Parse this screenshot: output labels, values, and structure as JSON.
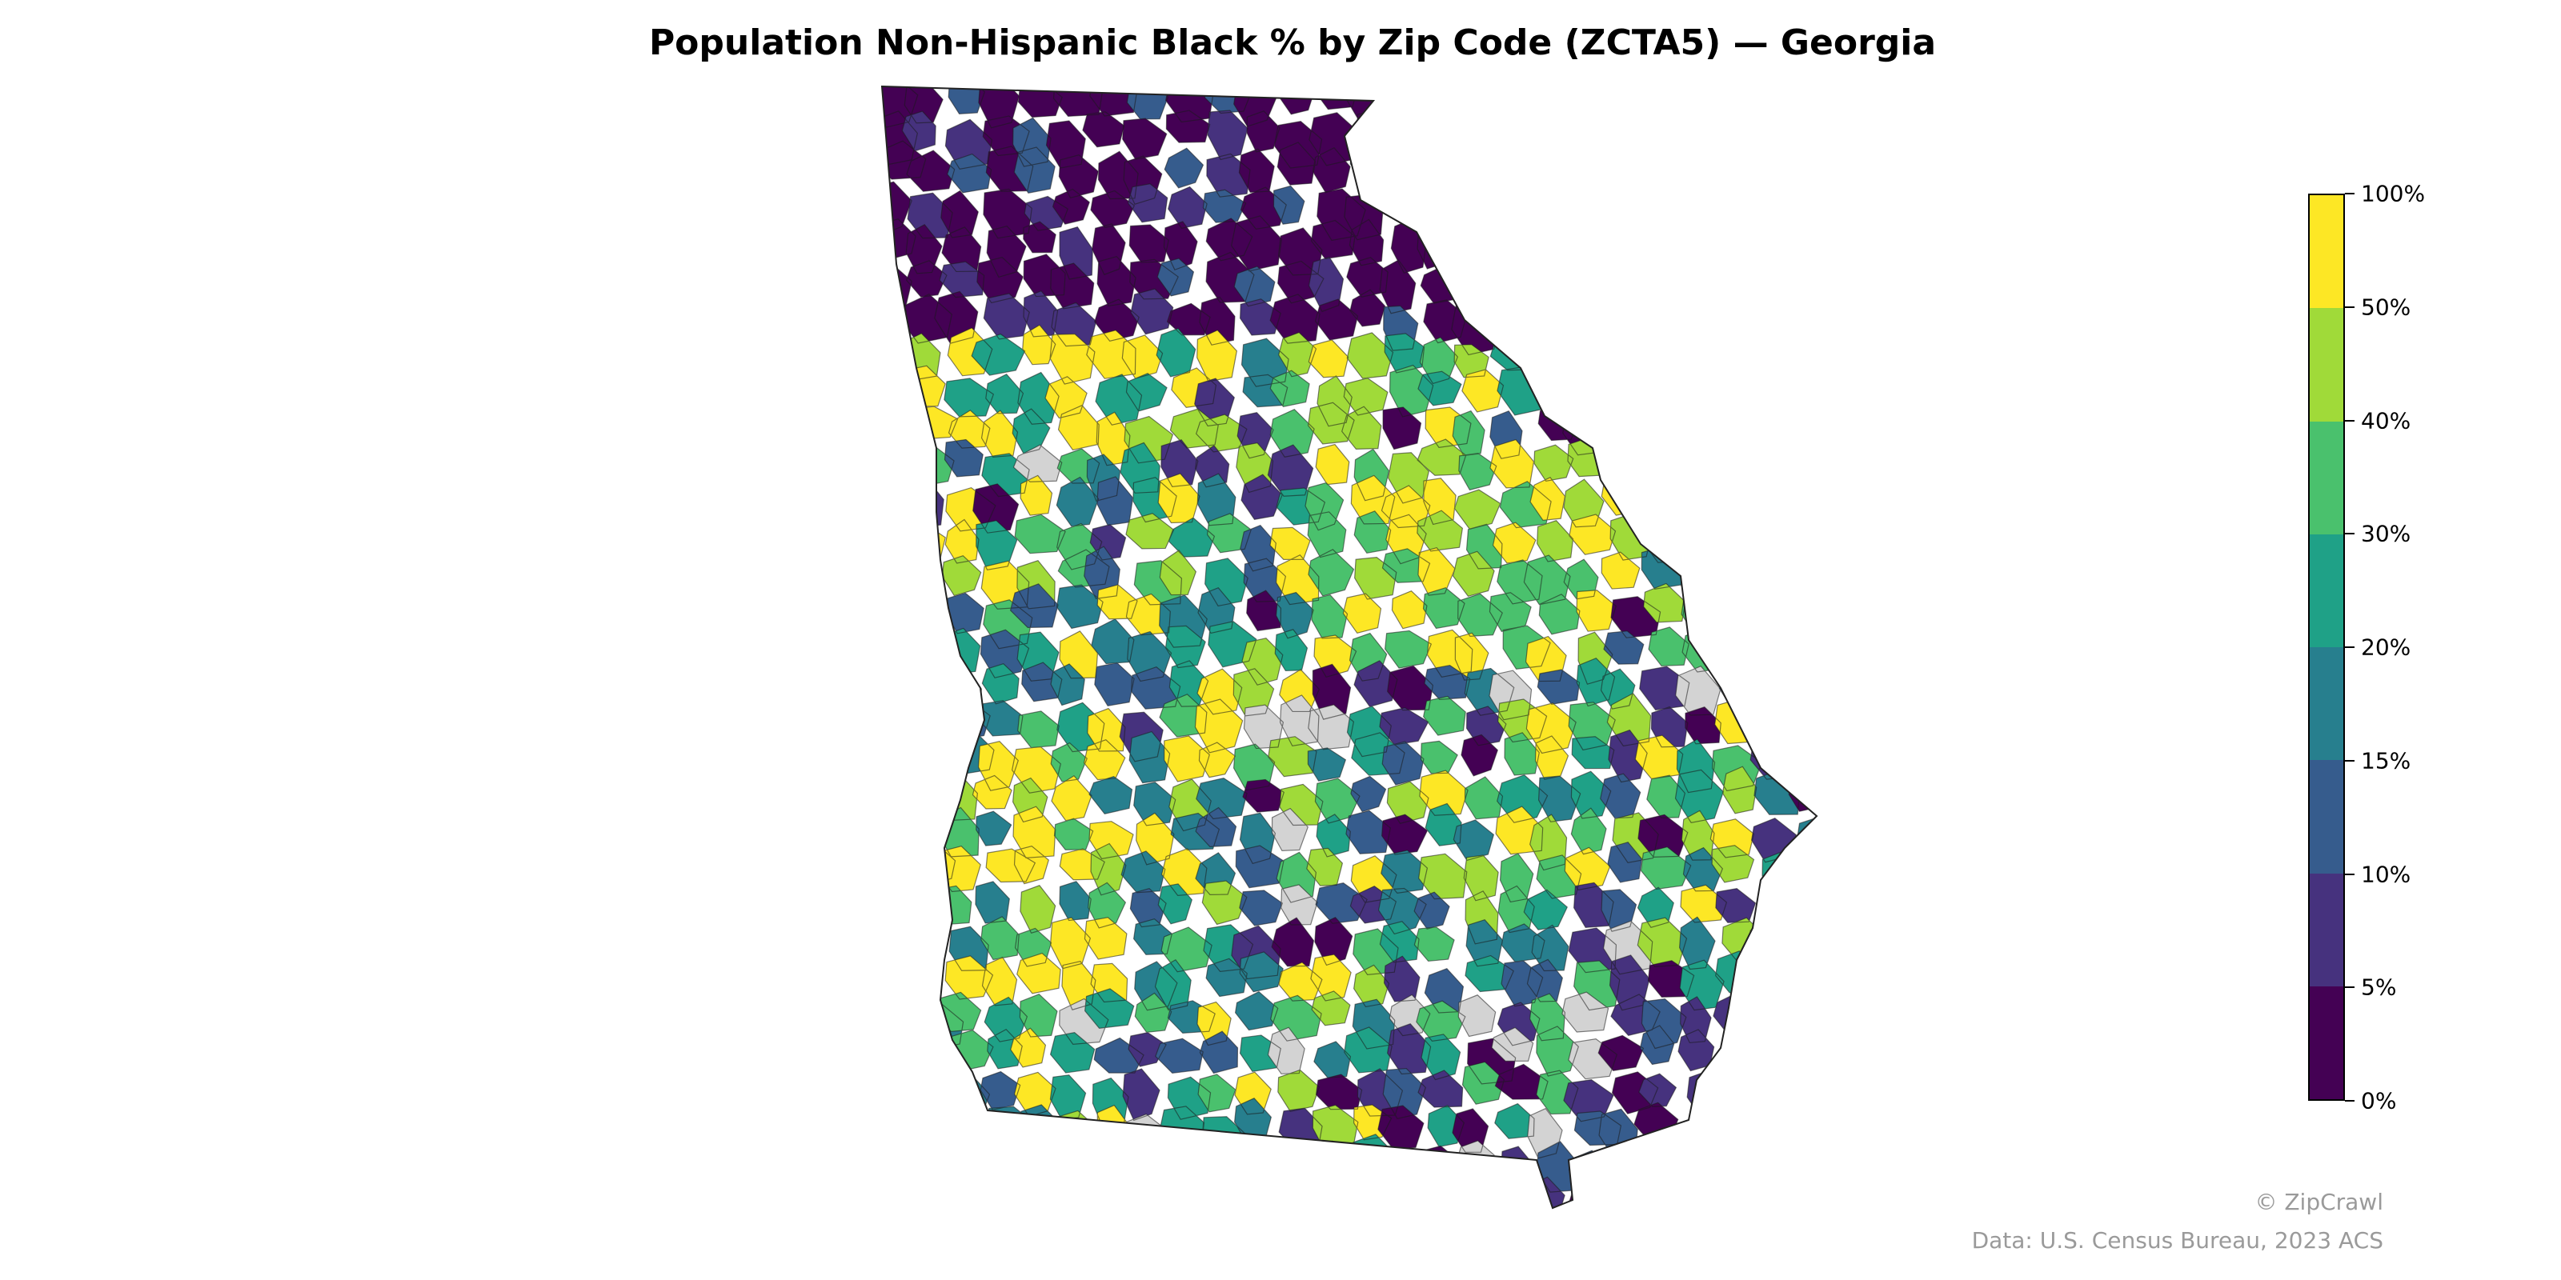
{
  "title": "Population Non-Hispanic Black % by Zip Code (ZCTA5) — Georgia",
  "legend": {
    "colors": [
      "#440154",
      "#46327e",
      "#365c8d",
      "#277f8e",
      "#1fa187",
      "#4ac16d",
      "#a0da39",
      "#fde725"
    ],
    "ticks": [
      "0%",
      "5%",
      "10%",
      "15%",
      "20%",
      "30%",
      "40%",
      "50%",
      "100%"
    ]
  },
  "no_data_color": "#d3d3d3",
  "credit": "© ZipCrawl",
  "source": "Data: U.S. Census Bureau, 2023 ACS"
}
